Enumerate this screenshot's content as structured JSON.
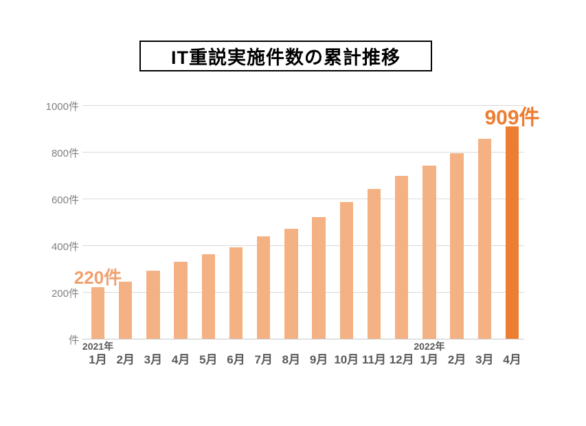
{
  "title": {
    "text": "IT重説実施件数の累計推移"
  },
  "chart_data": {
    "type": "bar",
    "title": "IT重説実施件数の累計推移",
    "unit": "件",
    "categories": [
      "1月",
      "2月",
      "3月",
      "4月",
      "5月",
      "6月",
      "7月",
      "8月",
      "9月",
      "10月",
      "11月",
      "12月",
      "1月",
      "2月",
      "3月",
      "4月"
    ],
    "values": [
      220,
      245,
      290,
      330,
      363,
      392,
      437,
      470,
      522,
      585,
      640,
      698,
      742,
      793,
      855,
      909
    ],
    "year_groups": [
      {
        "label": "2021年",
        "month_index": 0
      },
      {
        "label": "2022年",
        "month_index": 12
      }
    ],
    "ylim": [
      0,
      1000
    ],
    "yticks": [
      {
        "value": 0,
        "label": "件"
      },
      {
        "value": 200,
        "label": "200件"
      },
      {
        "value": 400,
        "label": "400件"
      },
      {
        "value": 600,
        "label": "600件"
      },
      {
        "value": 800,
        "label": "800件"
      },
      {
        "value": 1000,
        "label": "1000件"
      }
    ],
    "grid": true,
    "legend": "none",
    "highlight_index": 15,
    "annotations": [
      {
        "index": 0,
        "text": "220件",
        "color": "#F0A06E",
        "font_size": 26
      },
      {
        "index": 15,
        "text": "909件",
        "color": "#ED7D31",
        "font_size": 30
      }
    ],
    "colors": {
      "bar": "#F4B183",
      "bar_highlight": "#ED7D31",
      "grid": "#D9D9D9",
      "axis_line": "#C9C7C7",
      "ytick_text": "#808080",
      "xtick_text": "#595959",
      "year_text": "#595959",
      "title_text": "#000000"
    }
  }
}
